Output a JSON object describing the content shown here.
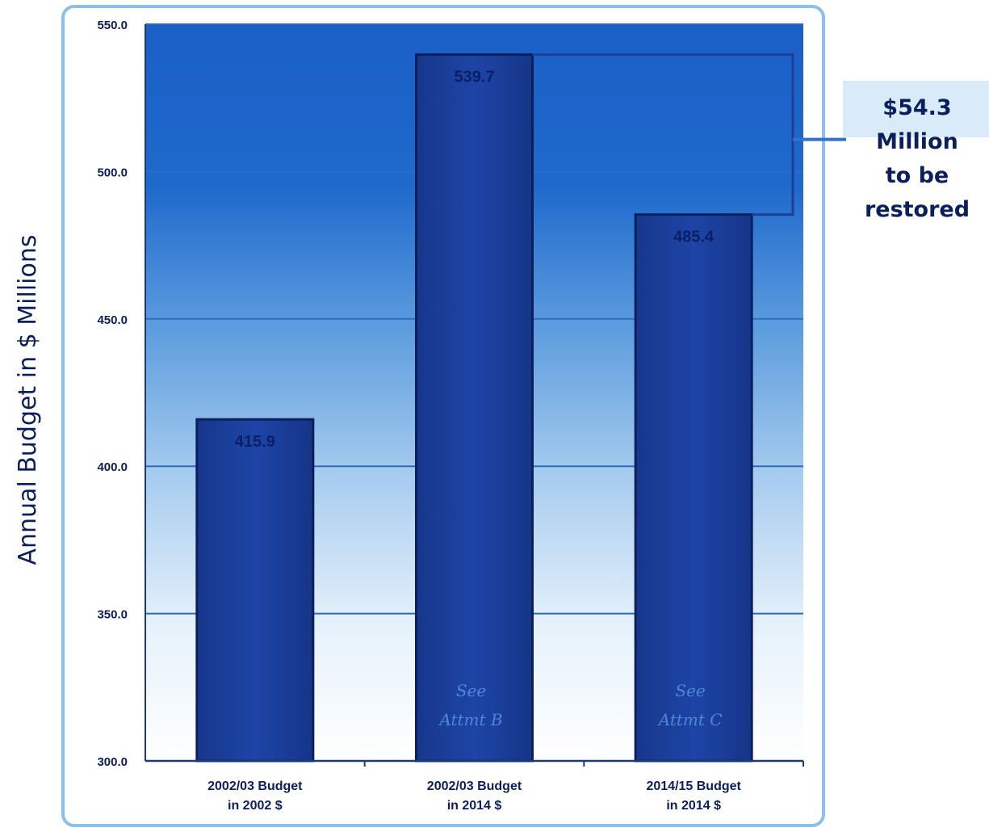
{
  "chart_data": {
    "type": "bar",
    "categories": [
      [
        "2002/03 Budget",
        "in 2002 $"
      ],
      [
        "2002/03 Budget",
        "in 2014 $"
      ],
      [
        "2014/15 Budget",
        "in 2014 $"
      ]
    ],
    "values": [
      415.9,
      539.7,
      485.4
    ],
    "value_labels": [
      "415.9",
      "539.7",
      "485.4"
    ],
    "bar_notes": [
      [],
      [
        "See",
        "Attmt B"
      ],
      [
        "See",
        "Attmt C"
      ]
    ],
    "ylabel": "Annual Budget in $ Millions",
    "ylim": [
      300,
      550
    ],
    "yticks": [
      "300.0",
      "350.0",
      "400.0",
      "450.0",
      "500.0",
      "550.0"
    ],
    "grid": true,
    "annotation": {
      "lines": [
        "$54.3",
        "Million",
        "to be",
        "restored"
      ],
      "from": 485.4,
      "to": 539.7
    },
    "colors": {
      "bar": "#1a3f9e",
      "bar_edge": "#0c1f5c",
      "background_top": "#1c62c8",
      "background_bottom": "#ffffff",
      "gridline": "#2a6cc4"
    }
  }
}
